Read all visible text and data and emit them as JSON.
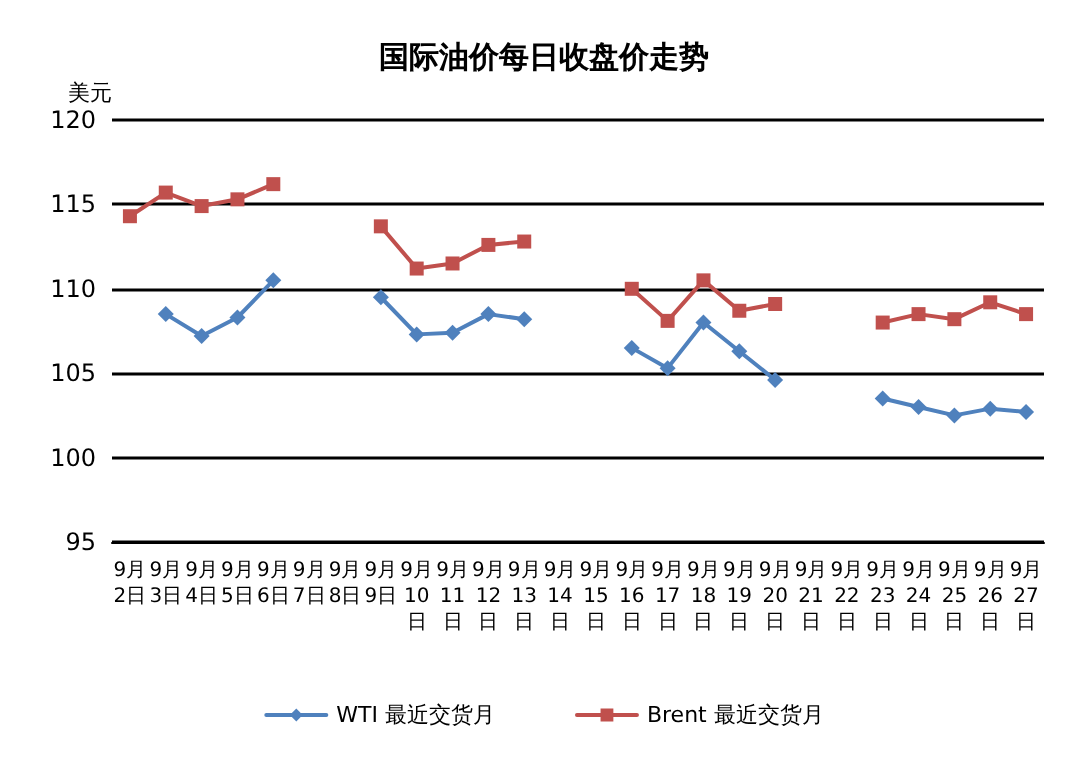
{
  "chart_data": {
    "type": "line",
    "title": "国际油价每日收盘价走势",
    "ylabel": "美元",
    "categories": [
      "9月2日",
      "9月3日",
      "9月4日",
      "9月5日",
      "9月6日",
      "9月7日",
      "9月8日",
      "9月9日",
      "9月10日",
      "9月11日",
      "9月12日",
      "9月13日",
      "9月14日",
      "9月15日",
      "9月16日",
      "9月17日",
      "9月18日",
      "9月19日",
      "9月20日",
      "9月21日",
      "9月22日",
      "9月23日",
      "9月24日",
      "9月25日",
      "9月26日",
      "9月27日"
    ],
    "series": [
      {
        "name": "WTI 最近交货月",
        "color": "#4f81bd",
        "marker": "diamond",
        "values": [
          null,
          108.5,
          107.2,
          108.3,
          110.5,
          null,
          null,
          109.5,
          107.3,
          107.4,
          108.5,
          108.2,
          null,
          null,
          106.5,
          105.3,
          108.0,
          106.3,
          104.6,
          null,
          null,
          103.5,
          103.0,
          102.5,
          102.9,
          102.7
        ]
      },
      {
        "name": "Brent 最近交货月",
        "color": "#c0504d",
        "marker": "square",
        "values": [
          114.3,
          115.7,
          114.9,
          115.3,
          116.2,
          null,
          null,
          113.7,
          111.2,
          111.5,
          112.6,
          112.8,
          null,
          null,
          110.0,
          108.1,
          110.5,
          108.7,
          109.1,
          null,
          null,
          108.0,
          108.5,
          108.2,
          109.2,
          108.5
        ]
      }
    ],
    "ylim": [
      95,
      120
    ],
    "yticks": [
      95,
      100,
      105,
      110,
      115,
      120
    ],
    "grid": "y",
    "legend": "bottom",
    "line_style": "solid"
  }
}
